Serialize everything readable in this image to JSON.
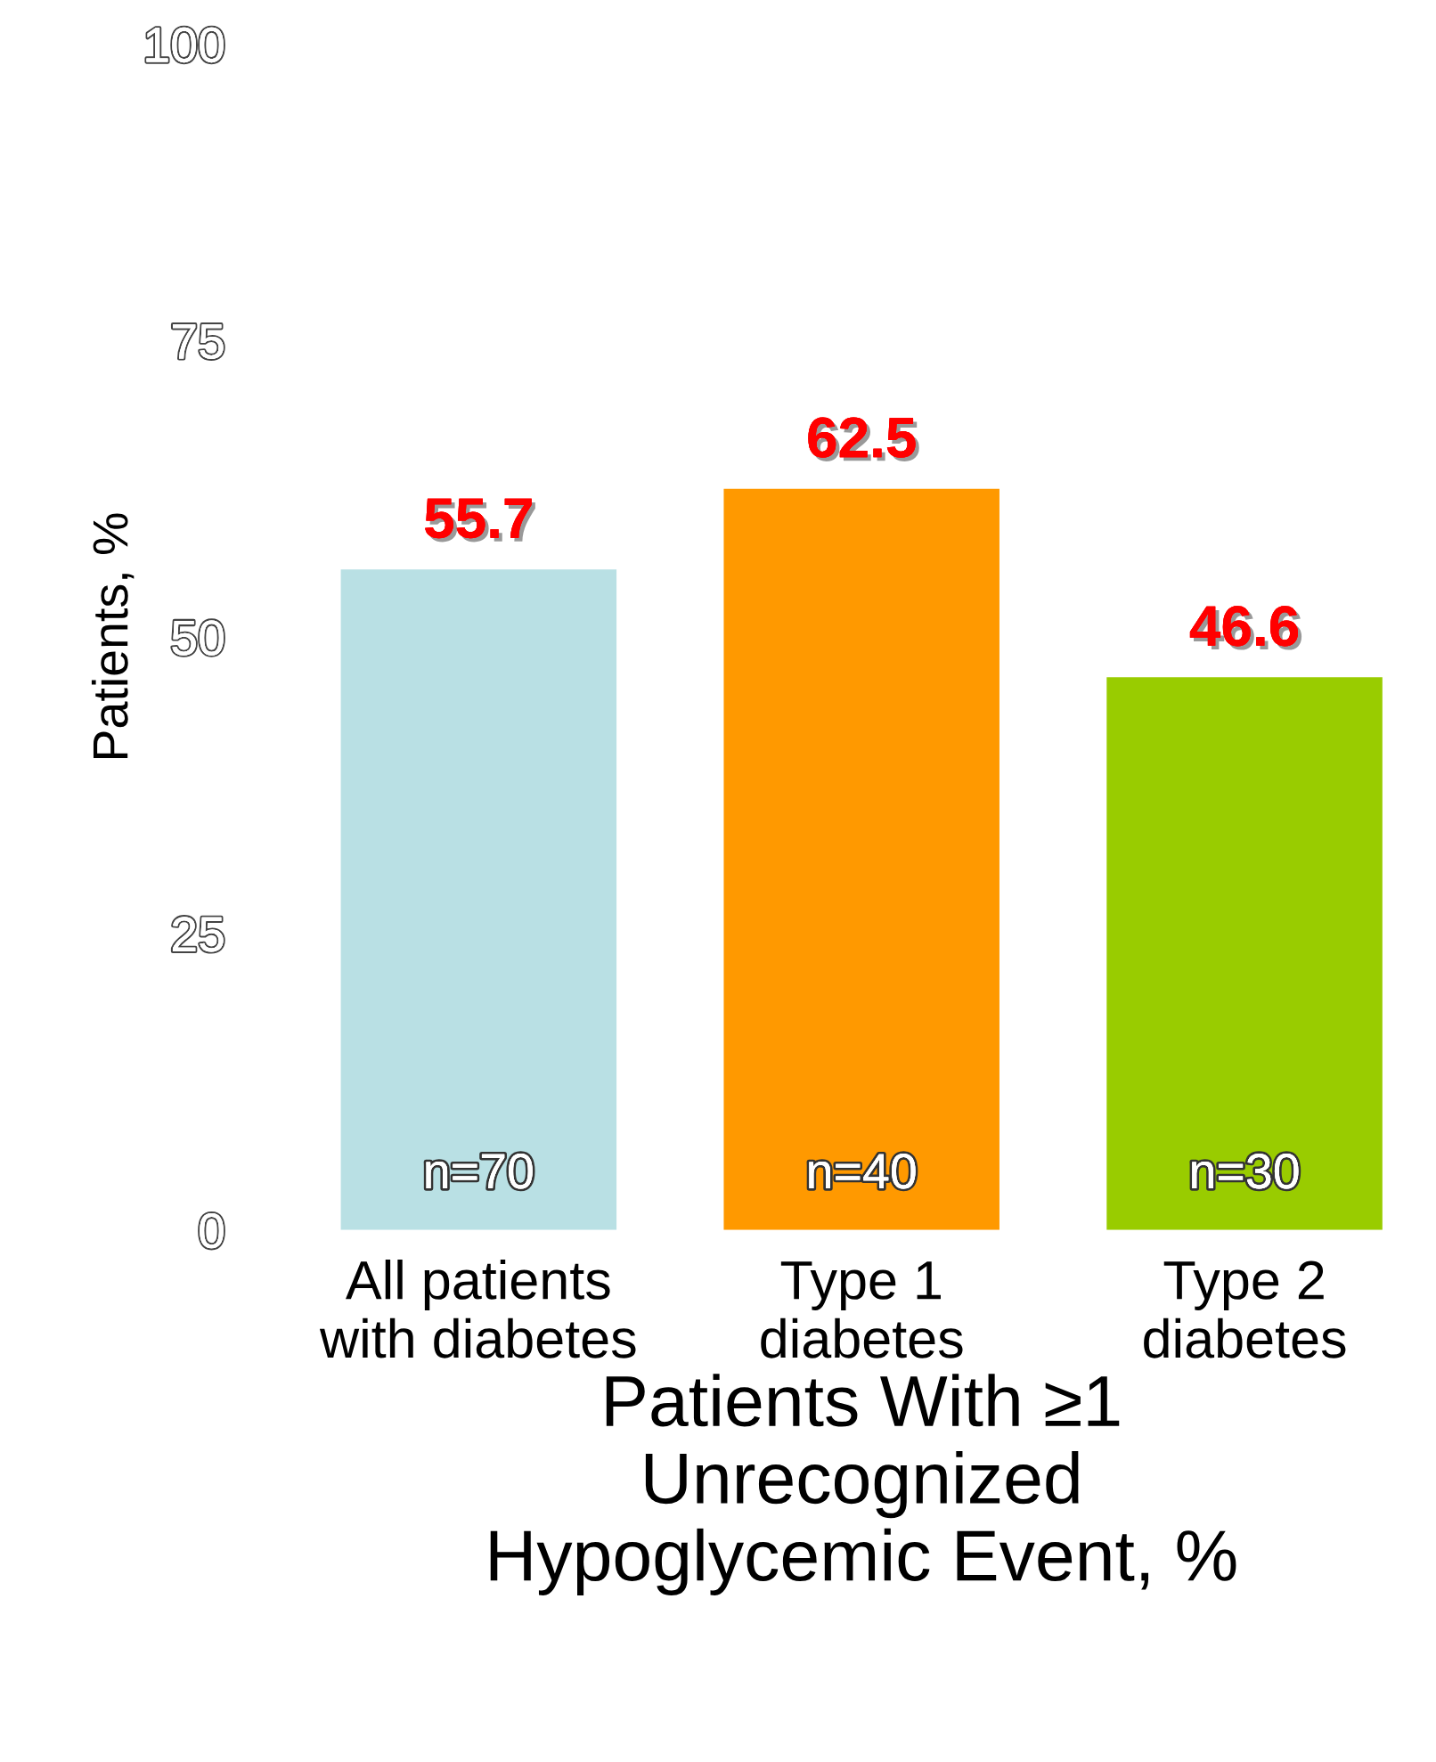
{
  "chart_data": {
    "type": "bar",
    "categories": [
      "All patients\nwith diabetes",
      "Type 1\ndiabetes",
      "Type 2\ndiabetes"
    ],
    "values": [
      55.7,
      62.5,
      46.6
    ],
    "colors": [
      "#b9e0e4",
      "#ff9900",
      "#99cc00"
    ],
    "ylabel": "Patients, %",
    "xlabel": "Patients With ≥1\nUnrecognized\nHypoglycemic Event, %",
    "ylim": [
      0,
      100
    ],
    "yticks": [
      0,
      25,
      50,
      75,
      100
    ],
    "data_labels": true,
    "grid": false,
    "legend": false,
    "annotations": [
      "n=70",
      "n=40",
      "n=30"
    ]
  }
}
